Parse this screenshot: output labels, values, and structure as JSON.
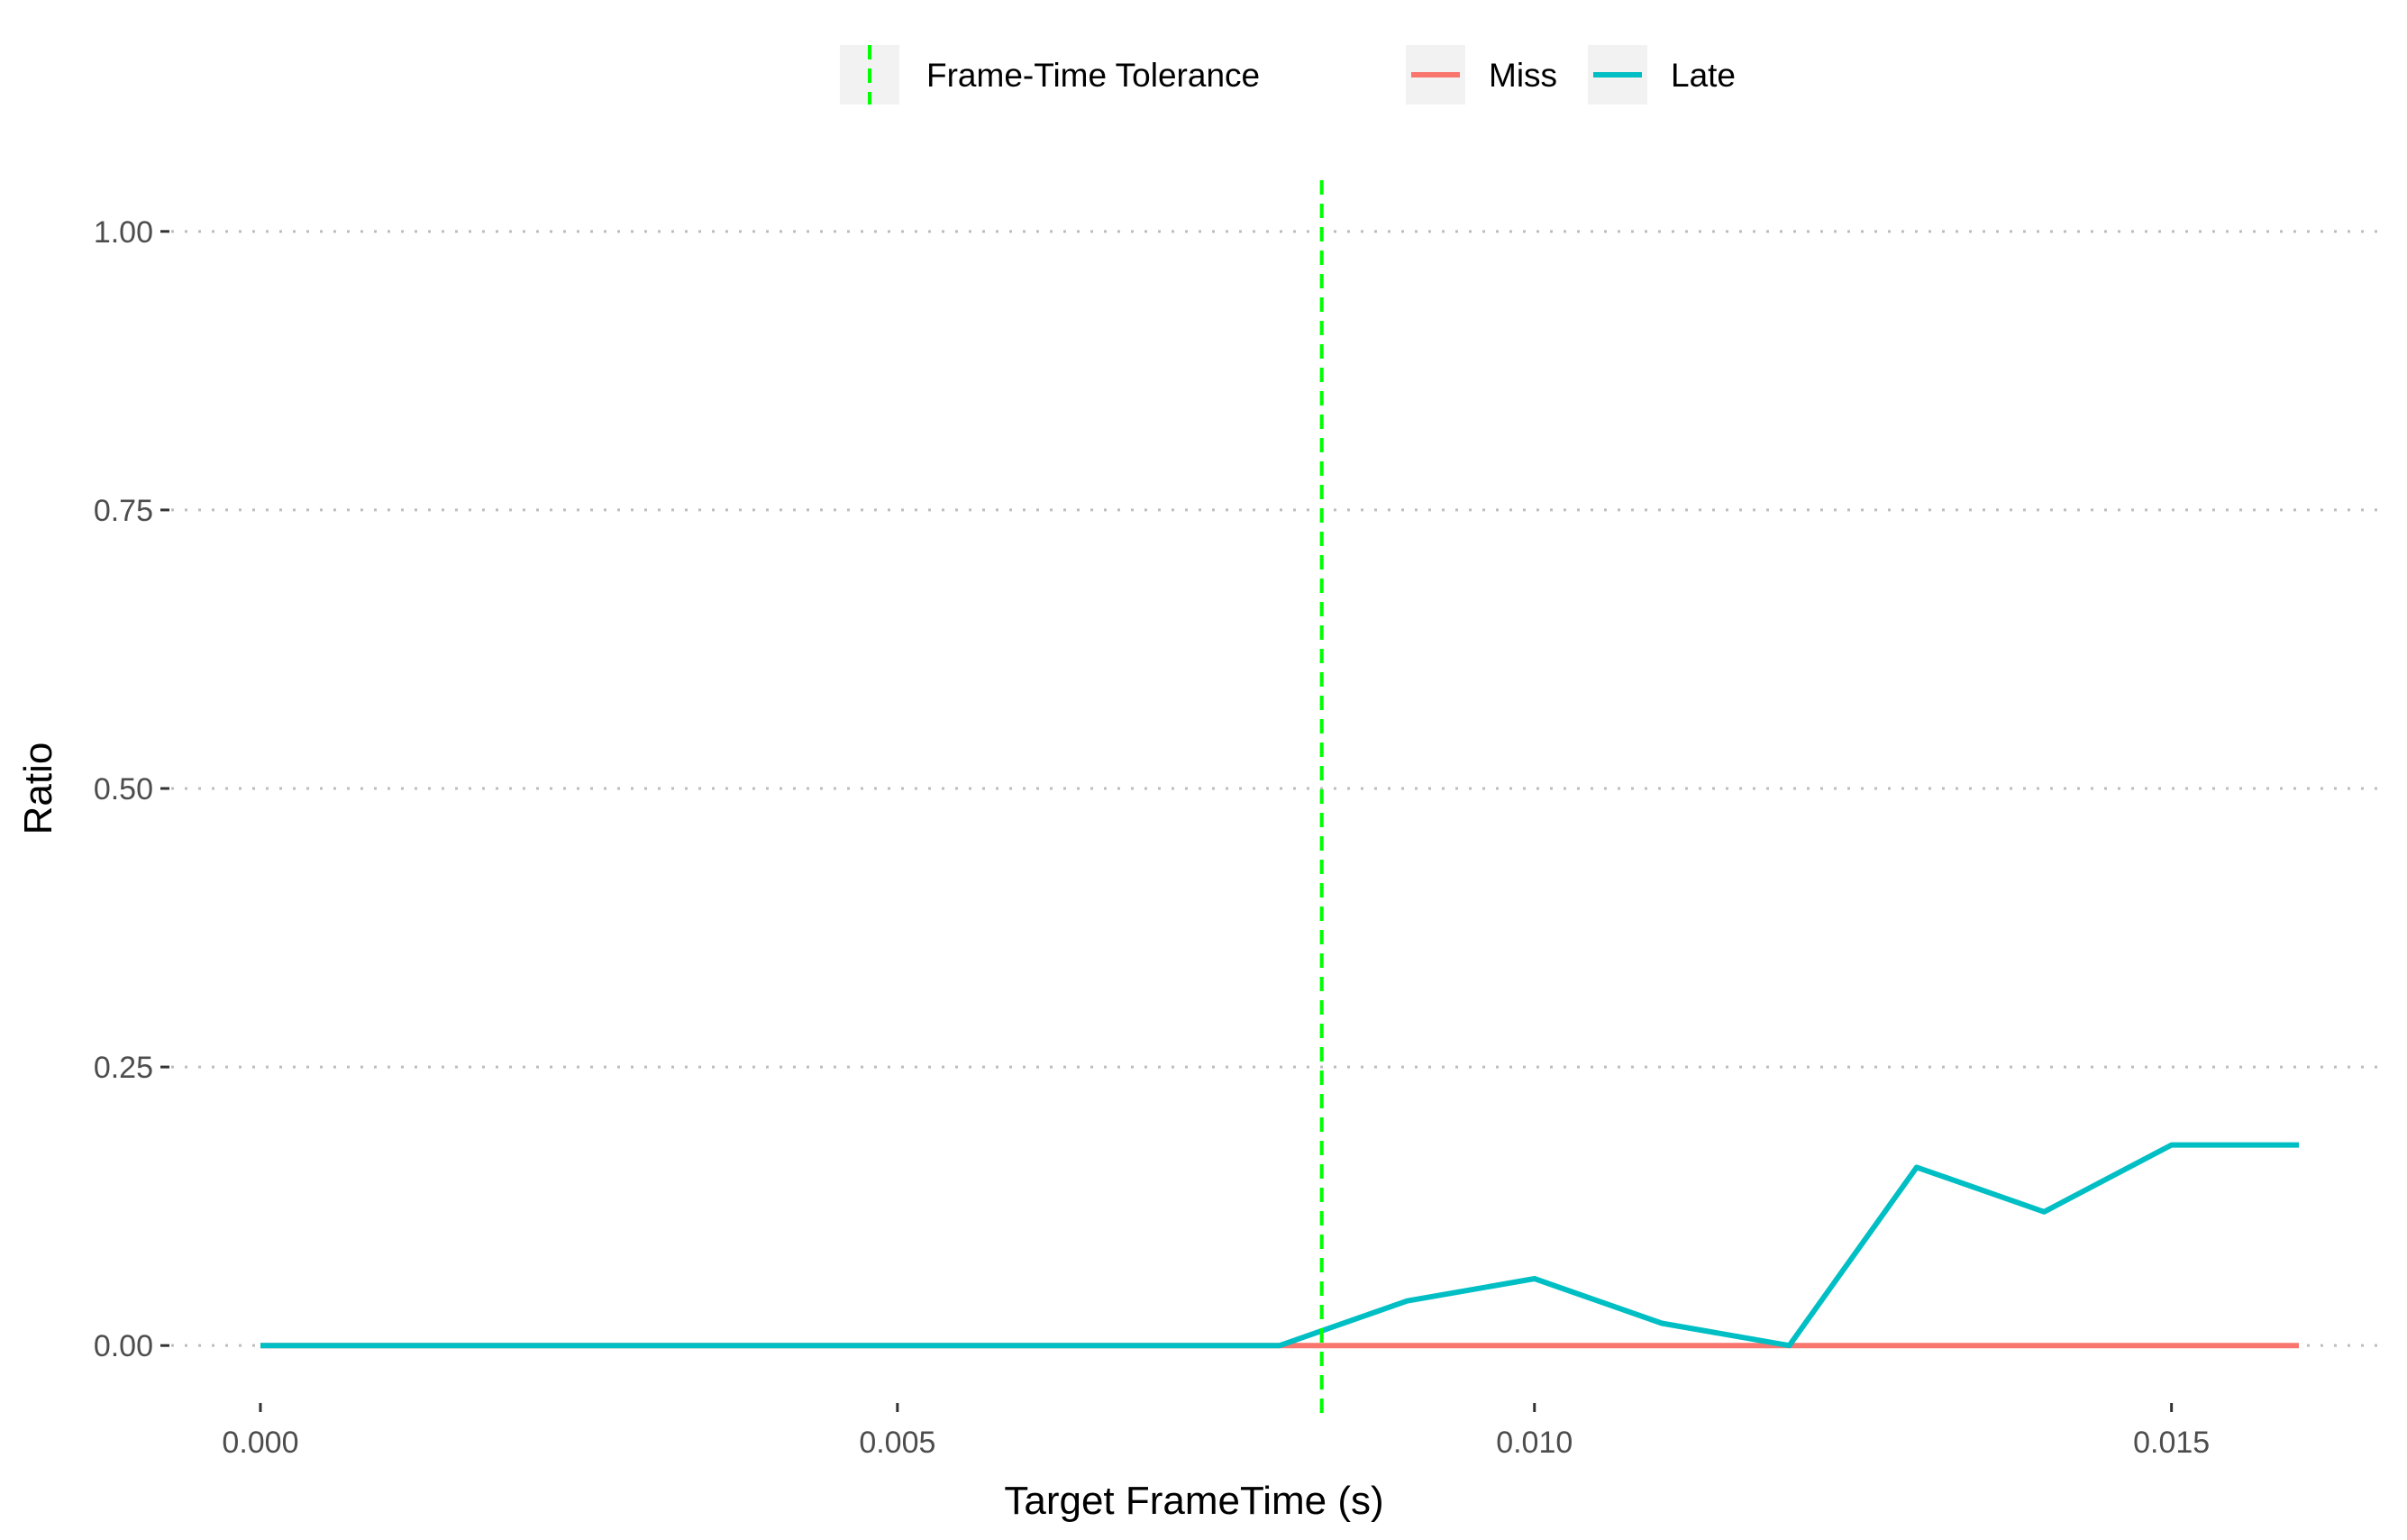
{
  "chart_data": {
    "type": "line",
    "title": "",
    "xlabel": "Target FrameTime (s)",
    "ylabel": "Ratio",
    "xlim": [
      -0.0007,
      0.0167
    ],
    "ylim": [
      -0.05,
      1.05
    ],
    "x_ticks": [
      0.0,
      0.005,
      0.01,
      0.015
    ],
    "x_tick_labels": [
      "0.000",
      "0.005",
      "0.010",
      "0.015"
    ],
    "y_ticks": [
      0.0,
      0.25,
      0.5,
      0.75,
      1.0
    ],
    "y_tick_labels": [
      "0.00",
      "0.25",
      "0.50",
      "0.75",
      "1.00"
    ],
    "grid": "horizontal dotted major lines only",
    "legend_position": "top",
    "reference_line": {
      "name": "Frame-Time Tolerance",
      "x": 0.00833,
      "color": "#00ff00",
      "style": "dashed"
    },
    "x": [
      0.0,
      0.001,
      0.002,
      0.003,
      0.004,
      0.005,
      0.006,
      0.007,
      0.008,
      0.009,
      0.01,
      0.011,
      0.012,
      0.013,
      0.014,
      0.015,
      0.016
    ],
    "series": [
      {
        "name": "Miss",
        "color": "#f8766d",
        "values": [
          0,
          0,
          0,
          0,
          0,
          0,
          0,
          0,
          0,
          0,
          0,
          0,
          0,
          0,
          0,
          0,
          0
        ]
      },
      {
        "name": "Late",
        "color": "#00bfc4",
        "values": [
          0,
          0,
          0,
          0,
          0,
          0,
          0,
          0,
          0,
          0.04,
          0.06,
          0.02,
          0,
          0.16,
          0.12,
          0.18,
          0.18
        ]
      }
    ]
  }
}
